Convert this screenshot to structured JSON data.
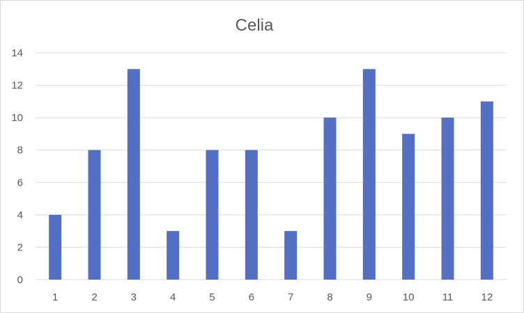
{
  "chart_data": {
    "type": "bar",
    "title": "Celia",
    "categories": [
      "1",
      "2",
      "3",
      "4",
      "5",
      "6",
      "7",
      "8",
      "9",
      "10",
      "11",
      "12"
    ],
    "values": [
      4,
      8,
      13,
      3,
      8,
      8,
      3,
      10,
      13,
      9,
      10,
      11
    ],
    "yticks": [
      "0",
      "2",
      "4",
      "6",
      "8",
      "10",
      "12",
      "14"
    ],
    "ylim": [
      0,
      14
    ],
    "grid": true,
    "legend": "none",
    "colors": {
      "bar": "#5470C6"
    }
  }
}
